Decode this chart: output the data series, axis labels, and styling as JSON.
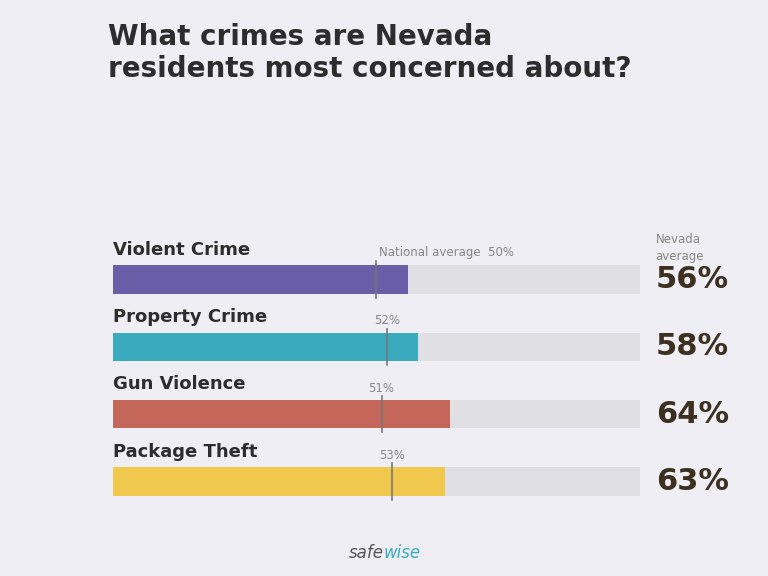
{
  "title": "What crimes are Nevada\nresidents most concerned about?",
  "categories": [
    "Violent Crime",
    "Property Crime",
    "Gun Violence",
    "Package Theft"
  ],
  "nevada_values": [
    56,
    58,
    64,
    63
  ],
  "national_values": [
    50,
    52,
    51,
    53
  ],
  "bar_colors": [
    "#6B5EA8",
    "#3AABBF",
    "#C4665A",
    "#F0C84E"
  ],
  "bg_color": "#eeeef4",
  "bar_bg_color": "#e0e0e4",
  "bar_height": 0.42,
  "max_bar": 100,
  "nevada_label": "Nevada\naverage",
  "national_label_first": "National average",
  "footer_safe": "safe",
  "footer_wise": "wise",
  "title_fontsize": 20,
  "category_fontsize": 13,
  "nevada_pct_fontsize": 22,
  "nevada_header_fontsize": 8.5,
  "nat_label_fontsize": 8.5,
  "footer_fontsize": 12,
  "title_color": "#2d2d2d",
  "category_color": "#2d2d2d",
  "nevada_pct_color": "#3d3020",
  "nevada_header_color": "#888888",
  "nat_label_color": "#888888",
  "vline_color": "#777777",
  "footer_safe_color": "#555555",
  "footer_wise_color": "#3AABBF"
}
